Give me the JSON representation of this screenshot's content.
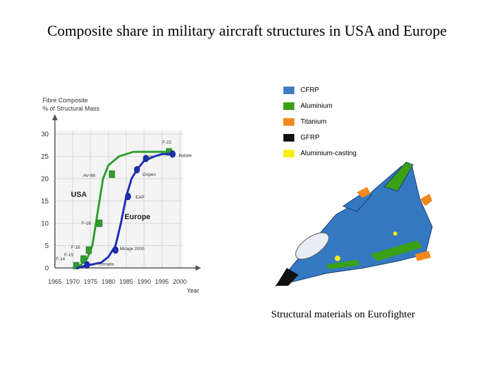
{
  "slide": {
    "title": "Composite share in military aircraft structures in USA and Europe",
    "caption": "Structural materials on Eurofighter"
  },
  "chart_data": {
    "type": "line",
    "ylabel_line1": "Fibre Composite",
    "ylabel_line2": "% of Structural Mass",
    "xlabel": "Year",
    "xlim": [
      1965,
      2000
    ],
    "ylim": [
      0,
      30
    ],
    "x_ticks": [
      "1965",
      "1970",
      "1975",
      "1980",
      "1985",
      "1990",
      "1995",
      "2000"
    ],
    "y_ticks": [
      "0",
      "5",
      "10",
      "15",
      "20",
      "25",
      "30"
    ],
    "grid": true,
    "series": [
      {
        "name": "USA",
        "color": "#2e9e2e",
        "curve": [
          [
            1970,
            0
          ],
          [
            1972,
            0.5
          ],
          [
            1974,
            2
          ],
          [
            1975.5,
            5
          ],
          [
            1976.5,
            10
          ],
          [
            1977.5,
            15
          ],
          [
            1978.5,
            20
          ],
          [
            1980,
            23
          ],
          [
            1983,
            25
          ],
          [
            1987,
            26
          ],
          [
            1995,
            26
          ],
          [
            1997,
            26
          ]
        ],
        "points": [
          {
            "label": "F-14",
            "x": 1971,
            "y": 0.5
          },
          {
            "label": "F-15",
            "x": 1973,
            "y": 2
          },
          {
            "label": "F-16",
            "x": 1974.5,
            "y": 4
          },
          {
            "label": "F-18",
            "x": 1977.5,
            "y": 10
          },
          {
            "label": "AV-8B",
            "x": 1981,
            "y": 21
          },
          {
            "label": "F-22",
            "x": 1997,
            "y": 26
          }
        ]
      },
      {
        "name": "Europe",
        "color": "#1a2fb8",
        "curve": [
          [
            1971,
            0
          ],
          [
            1975,
            0.7
          ],
          [
            1978,
            1.2
          ],
          [
            1980,
            2.5
          ],
          [
            1982,
            5
          ],
          [
            1983.5,
            10
          ],
          [
            1985,
            16
          ],
          [
            1986.5,
            20
          ],
          [
            1988,
            22
          ],
          [
            1990,
            24
          ],
          [
            1993,
            25
          ],
          [
            1995,
            25.5
          ],
          [
            1998,
            25.5
          ]
        ],
        "points": [
          {
            "label": "Tornado",
            "x": 1974,
            "y": 0.7
          },
          {
            "label": "Mirage 2000",
            "x": 1982,
            "y": 4
          },
          {
            "label": "EAP",
            "x": 1985.5,
            "y": 16
          },
          {
            "label": "Gripen",
            "x": 1988,
            "y": 22
          },
          {
            "label": "EF",
            "x": 1990.5,
            "y": 24.5
          },
          {
            "label": "Rafale",
            "x": 1998,
            "y": 25.5
          }
        ]
      }
    ],
    "region_labels": [
      {
        "text": "USA",
        "x": 1969.5,
        "y": 15
      },
      {
        "text": "Europe",
        "x": 1984.5,
        "y": 10
      }
    ],
    "legend": {
      "position": "right",
      "items": [
        {
          "label": "CFRP",
          "color": "#3b7cc4"
        },
        {
          "label": "Aluminium",
          "color": "#3aa015"
        },
        {
          "label": "Titanium",
          "color": "#f18a1e"
        },
        {
          "label": "GFRP",
          "color": "#111111"
        },
        {
          "label": "Aluminium-casting",
          "color": "#f7ee13"
        }
      ]
    }
  }
}
